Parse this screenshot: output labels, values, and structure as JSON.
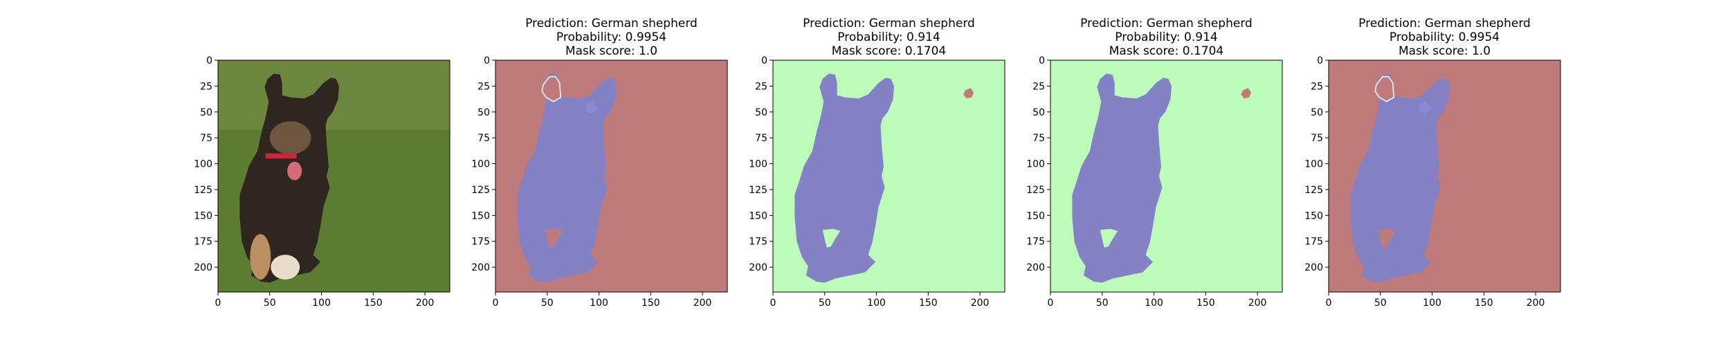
{
  "colors": {
    "background_mask": "#bf7b7b",
    "dog_mask": "#8481c4",
    "inverse_background": "#bdfbbb",
    "inverse_blob": "#c27a78",
    "axis": "#000000",
    "photo_grass": "#5c7d31",
    "photo_dog_dark": "#2f2620",
    "photo_dog_tan": "#b98f63"
  },
  "chart_data": [
    {
      "type": "image",
      "panel": "input-photo",
      "title_lines": [],
      "x_ticks": [
        0,
        50,
        100,
        150,
        200
      ],
      "y_ticks": [
        0,
        25,
        50,
        75,
        100,
        125,
        150,
        175,
        200
      ],
      "xlim": [
        0,
        224
      ],
      "ylim": [
        224,
        0
      ]
    },
    {
      "type": "image",
      "panel": "mask-overlay",
      "title_lines": [
        "Prediction: German shepherd",
        "Probability: 0.9954",
        "Mask score: 1.0"
      ],
      "x_ticks": [
        0,
        50,
        100,
        150,
        200
      ],
      "y_ticks": [
        0,
        25,
        50,
        75,
        100,
        125,
        150,
        175,
        200
      ],
      "xlim": [
        0,
        224
      ],
      "ylim": [
        224,
        0
      ]
    },
    {
      "type": "image",
      "panel": "inverse-mask-overlay",
      "title_lines": [
        "Prediction: German shepherd",
        "Probability: 0.914",
        "Mask score: 0.1704"
      ],
      "x_ticks": [
        0,
        50,
        100,
        150,
        200
      ],
      "y_ticks": [
        0,
        25,
        50,
        75,
        100,
        125,
        150,
        175,
        200
      ],
      "xlim": [
        0,
        224
      ],
      "ylim": [
        224,
        0
      ]
    },
    {
      "type": "image",
      "panel": "inverse-mask-overlay",
      "title_lines": [
        "Prediction: German shepherd",
        "Probability: 0.914",
        "Mask score: 0.1704"
      ],
      "x_ticks": [
        0,
        50,
        100,
        150,
        200
      ],
      "y_ticks": [
        0,
        25,
        50,
        75,
        100,
        125,
        150,
        175,
        200
      ],
      "xlim": [
        0,
        224
      ],
      "ylim": [
        224,
        0
      ]
    },
    {
      "type": "image",
      "panel": "mask-overlay",
      "title_lines": [
        "Prediction: German shepherd",
        "Probability: 0.9954",
        "Mask score: 1.0"
      ],
      "x_ticks": [
        0,
        50,
        100,
        150,
        200
      ],
      "y_ticks": [
        0,
        25,
        50,
        75,
        100,
        125,
        150,
        175,
        200
      ],
      "xlim": [
        0,
        224
      ],
      "ylim": [
        224,
        0
      ]
    }
  ]
}
